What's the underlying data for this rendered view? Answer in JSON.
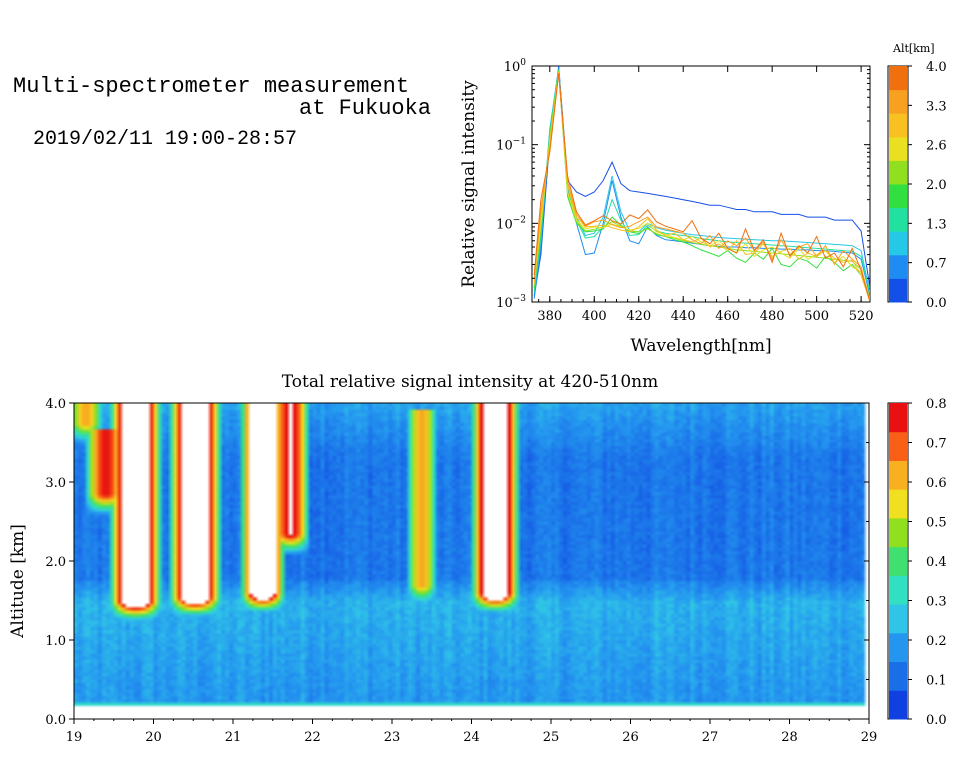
{
  "header": {
    "title_line1": "Multi-spectrometer measurement",
    "title_line2": "at Fukuoka",
    "date": "2019/02/11 19:00-28:57"
  },
  "chart_data": [
    {
      "type": "line",
      "title": "",
      "xlabel": "Wavelength[nm]",
      "ylabel": "Relative signal intensity",
      "xlim": [
        372,
        524
      ],
      "ylim": [
        0.001,
        1.0
      ],
      "yscale": "log",
      "x_ticks": [
        380,
        400,
        420,
        440,
        460,
        480,
        500,
        520
      ],
      "y_tick_labels": [
        "10^-3",
        "10^-2",
        "10^-1",
        "10^0"
      ],
      "colorbar": {
        "label": "Alt[km]",
        "ticks": [
          "0.0",
          "0.7",
          "1.3",
          "2.0",
          "2.6",
          "3.3",
          "4.0"
        ],
        "colors": [
          "#1450e8",
          "#1e8cf0",
          "#26c8e8",
          "#22e0a0",
          "#30e040",
          "#90e020",
          "#e8e020",
          "#f8c020",
          "#f8a020",
          "#f07010"
        ]
      },
      "x": [
        373,
        376,
        380,
        384,
        388,
        392,
        396,
        400,
        404,
        408,
        412,
        416,
        420,
        424,
        428,
        432,
        436,
        440,
        444,
        448,
        452,
        456,
        460,
        464,
        468,
        472,
        476,
        480,
        484,
        488,
        492,
        496,
        500,
        504,
        508,
        512,
        516,
        520,
        524
      ],
      "series": [
        {
          "color": "#1450e8",
          "values": [
            0.0012,
            0.004,
            0.12,
            1.0,
            0.035,
            0.025,
            0.022,
            0.025,
            0.035,
            0.06,
            0.032,
            0.026,
            0.025,
            0.024,
            0.023,
            0.022,
            0.021,
            0.02,
            0.019,
            0.018,
            0.017,
            0.017,
            0.016,
            0.015,
            0.015,
            0.014,
            0.014,
            0.014,
            0.013,
            0.013,
            0.013,
            0.012,
            0.012,
            0.012,
            0.011,
            0.011,
            0.011,
            0.008,
            0.0015
          ]
        },
        {
          "color": "#1e8cf0",
          "values": [
            0.0011,
            0.005,
            0.15,
            0.95,
            0.028,
            0.01,
            0.004,
            0.0042,
            0.01,
            0.035,
            0.012,
            0.006,
            0.0055,
            0.009,
            0.007,
            0.0062,
            0.006,
            0.0058,
            0.0056,
            0.0054,
            0.0052,
            0.0051,
            0.005,
            0.005,
            0.0049,
            0.0049,
            0.0048,
            0.0048,
            0.0047,
            0.0047,
            0.0046,
            0.0046,
            0.0045,
            0.0045,
            0.0044,
            0.0043,
            0.0042,
            0.0035,
            0.0012
          ]
        },
        {
          "color": "#26c8e8",
          "values": [
            0.0013,
            0.006,
            0.16,
            0.92,
            0.03,
            0.012,
            0.007,
            0.0075,
            0.012,
            0.04,
            0.014,
            0.008,
            0.0078,
            0.01,
            0.0088,
            0.0082,
            0.0078,
            0.0075,
            0.0072,
            0.007,
            0.0068,
            0.0066,
            0.0065,
            0.0064,
            0.0063,
            0.0062,
            0.0061,
            0.006,
            0.006,
            0.0059,
            0.0058,
            0.0057,
            0.0056,
            0.0055,
            0.0054,
            0.0053,
            0.0052,
            0.0045,
            0.0013
          ]
        },
        {
          "color": "#22e0a0",
          "values": [
            0.0014,
            0.007,
            0.14,
            0.9,
            0.026,
            0.011,
            0.0065,
            0.0068,
            0.009,
            0.02,
            0.011,
            0.007,
            0.0072,
            0.0095,
            0.008,
            0.0075,
            0.0072,
            0.007,
            0.0068,
            0.0064,
            0.0062,
            0.006,
            0.0058,
            0.0057,
            0.0056,
            0.0055,
            0.0054,
            0.0053,
            0.0052,
            0.0051,
            0.005,
            0.0049,
            0.0048,
            0.0047,
            0.0046,
            0.0045,
            0.0044,
            0.0038,
            0.0013
          ]
        },
        {
          "color": "#30e040",
          "values": [
            0.0015,
            0.008,
            0.13,
            0.88,
            0.022,
            0.01,
            0.0078,
            0.008,
            0.0085,
            0.012,
            0.0095,
            0.0078,
            0.0074,
            0.0088,
            0.0072,
            0.0068,
            0.0062,
            0.0058,
            0.0052,
            0.0046,
            0.0042,
            0.0038,
            0.0045,
            0.0036,
            0.0032,
            0.0042,
            0.0035,
            0.0048,
            0.003,
            0.0028,
            0.0036,
            0.0033,
            0.0027,
            0.0038,
            0.0032,
            0.0025,
            0.003,
            0.0022,
            0.0011
          ]
        },
        {
          "color": "#90e020",
          "values": [
            0.0016,
            0.009,
            0.12,
            0.86,
            0.024,
            0.0105,
            0.008,
            0.0084,
            0.009,
            0.0105,
            0.0092,
            0.008,
            0.0078,
            0.0085,
            0.0074,
            0.0068,
            0.0065,
            0.006,
            0.0057,
            0.0054,
            0.0052,
            0.005,
            0.0048,
            0.0046,
            0.0045,
            0.0044,
            0.0043,
            0.0042,
            0.0041,
            0.004,
            0.0039,
            0.0038,
            0.0037,
            0.0036,
            0.0035,
            0.0034,
            0.0033,
            0.0026,
            0.0011
          ]
        },
        {
          "color": "#e8e020",
          "values": [
            0.0017,
            0.01,
            0.11,
            0.85,
            0.025,
            0.011,
            0.0085,
            0.009,
            0.0088,
            0.0098,
            0.009,
            0.0082,
            0.0086,
            0.01,
            0.0078,
            0.0072,
            0.0066,
            0.0062,
            0.0068,
            0.0058,
            0.0052,
            0.006,
            0.0048,
            0.0042,
            0.0055,
            0.0038,
            0.0046,
            0.005,
            0.0042,
            0.0036,
            0.0048,
            0.0035,
            0.004,
            0.0045,
            0.0032,
            0.0038,
            0.0028,
            0.0024,
            0.001
          ]
        },
        {
          "color": "#f8c020",
          "values": [
            0.0018,
            0.012,
            0.1,
            0.84,
            0.03,
            0.012,
            0.009,
            0.0092,
            0.0095,
            0.0088,
            0.0082,
            0.0078,
            0.009,
            0.0115,
            0.0082,
            0.007,
            0.0075,
            0.0062,
            0.0058,
            0.0065,
            0.005,
            0.0055,
            0.0045,
            0.006,
            0.004,
            0.0042,
            0.0055,
            0.0038,
            0.0044,
            0.0048,
            0.0035,
            0.0042,
            0.0038,
            0.0045,
            0.0036,
            0.0032,
            0.0034,
            0.0022,
            0.001
          ]
        },
        {
          "color": "#f8a020",
          "values": [
            0.002,
            0.015,
            0.09,
            0.82,
            0.034,
            0.013,
            0.0092,
            0.0105,
            0.011,
            0.0096,
            0.0088,
            0.0092,
            0.0105,
            0.012,
            0.009,
            0.0085,
            0.008,
            0.0075,
            0.0062,
            0.0055,
            0.007,
            0.0048,
            0.006,
            0.0052,
            0.0065,
            0.0045,
            0.0058,
            0.0035,
            0.0062,
            0.004,
            0.005,
            0.0055,
            0.0038,
            0.0052,
            0.003,
            0.0045,
            0.0035,
            0.0028,
            0.001
          ]
        },
        {
          "color": "#f07010",
          "values": [
            0.0022,
            0.02,
            0.08,
            0.8,
            0.04,
            0.014,
            0.0095,
            0.0108,
            0.0125,
            0.0108,
            0.0098,
            0.0128,
            0.0115,
            0.0148,
            0.0105,
            0.0092,
            0.0085,
            0.0078,
            0.0108,
            0.0065,
            0.0055,
            0.0075,
            0.0048,
            0.0042,
            0.0085,
            0.0045,
            0.0062,
            0.0032,
            0.0075,
            0.0038,
            0.0052,
            0.0042,
            0.0068,
            0.0036,
            0.0042,
            0.0028,
            0.0048,
            0.0025,
            0.001
          ]
        }
      ]
    },
    {
      "type": "heatmap",
      "title": "Total relative signal intensity at 420-510nm",
      "xlabel": "",
      "ylabel": "Altitude [km]",
      "xlim": [
        19,
        29
      ],
      "ylim": [
        0.0,
        4.0
      ],
      "x_ticks": [
        "19",
        "20",
        "21",
        "22",
        "23",
        "24",
        "25",
        "26",
        "27",
        "28",
        "29"
      ],
      "y_ticks": [
        "0.0",
        "1.0",
        "2.0",
        "3.0",
        "4.0"
      ],
      "data_extent_x": [
        19,
        28.95
      ],
      "data_extent_y": [
        0.15,
        4.0
      ],
      "colorbar": {
        "ticks": [
          "0.0",
          "0.1",
          "0.2",
          "0.3",
          "0.4",
          "0.5",
          "0.6",
          "0.7",
          "0.8"
        ],
        "colors": [
          "#1040e0",
          "#1a6ee8",
          "#2496f0",
          "#30c4e8",
          "#30e0c0",
          "#40e070",
          "#90e020",
          "#f0e020",
          "#f8b020",
          "#f86018",
          "#e81010"
        ]
      },
      "clouds": [
        {
          "x0": 19.25,
          "x1": 19.55,
          "y0": 2.7,
          "y1": 3.65,
          "peak": 0.7
        },
        {
          "x0": 19.55,
          "x1": 20.0,
          "y0": 1.35,
          "y1": 4.0,
          "peak": 1.0
        },
        {
          "x0": 20.3,
          "x1": 20.75,
          "y0": 1.4,
          "y1": 4.0,
          "peak": 1.0
        },
        {
          "x0": 21.2,
          "x1": 21.55,
          "y0": 1.45,
          "y1": 4.0,
          "peak": 1.0
        },
        {
          "x0": 21.6,
          "x1": 21.85,
          "y0": 2.2,
          "y1": 4.0,
          "peak": 0.75
        },
        {
          "x0": 23.3,
          "x1": 23.45,
          "y0": 1.55,
          "y1": 3.9,
          "peak": 0.55
        },
        {
          "x0": 24.1,
          "x1": 24.5,
          "y0": 1.45,
          "y1": 4.0,
          "peak": 1.0
        },
        {
          "x0": 19.05,
          "x1": 19.25,
          "y0": 3.6,
          "y1": 4.0,
          "peak": 0.55
        }
      ],
      "boundary_layer_top_km": 1.5,
      "boundary_layer_value": 0.2,
      "free_troposphere_value": 0.1
    }
  ]
}
